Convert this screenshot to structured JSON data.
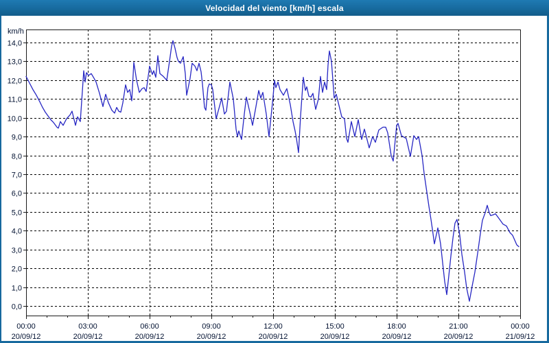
{
  "colors": {
    "chrome_blue": "#17699e",
    "plot_background": "#ffffff",
    "plot_border": "#1a1a1a",
    "gridline": "#000000",
    "line_blue": "#2626c3",
    "tick_text": "#001030",
    "title_text": "#ffffff"
  },
  "chart_data": {
    "type": "line",
    "title": "Velocidad del viento [km/h] escala",
    "y_unit_label": "km/h",
    "series_name": "Velocidad del viento",
    "grid": "dashed",
    "legend": "none",
    "x_axis": {
      "range_hours": [
        0,
        24
      ],
      "minor_tick_hours": 1,
      "major_tick_hours": 3,
      "ticks": [
        {
          "hour": 0,
          "time": "00:00",
          "date": "20/09/12"
        },
        {
          "hour": 3,
          "time": "03:00",
          "date": "20/09/12"
        },
        {
          "hour": 6,
          "time": "06:00",
          "date": "20/09/12"
        },
        {
          "hour": 9,
          "time": "09:00",
          "date": "20/09/12"
        },
        {
          "hour": 12,
          "time": "12:00",
          "date": "20/09/12"
        },
        {
          "hour": 15,
          "time": "15:00",
          "date": "20/09/12"
        },
        {
          "hour": 18,
          "time": "18:00",
          "date": "20/09/12"
        },
        {
          "hour": 21,
          "time": "21:00",
          "date": "20/09/12"
        },
        {
          "hour": 24,
          "time": "00:00",
          "date": "21/09/12"
        }
      ]
    },
    "y_axis": {
      "range_display": [
        -0.5,
        14.7
      ],
      "ticks": [
        {
          "v": 0,
          "label": "0,0"
        },
        {
          "v": 1,
          "label": "1,0"
        },
        {
          "v": 2,
          "label": "2,0"
        },
        {
          "v": 3,
          "label": "3,0"
        },
        {
          "v": 4,
          "label": "4,0"
        },
        {
          "v": 5,
          "label": "5,0"
        },
        {
          "v": 6,
          "label": "6,0"
        },
        {
          "v": 7,
          "label": "7,0"
        },
        {
          "v": 8,
          "label": "8,0"
        },
        {
          "v": 9,
          "label": "9,0"
        },
        {
          "v": 10,
          "label": "10,0"
        },
        {
          "v": 11,
          "label": "11,0"
        },
        {
          "v": 12,
          "label": "12,0"
        },
        {
          "v": 13,
          "label": "13,0"
        },
        {
          "v": 14,
          "label": "14,0"
        }
      ]
    },
    "points_min_kmh": [
      [
        0,
        12.2
      ],
      [
        10,
        11.85
      ],
      [
        20,
        11.5
      ],
      [
        30,
        11.2
      ],
      [
        40,
        10.85
      ],
      [
        48,
        10.55
      ],
      [
        56,
        10.3
      ],
      [
        64,
        10.1
      ],
      [
        72,
        9.9
      ],
      [
        80,
        9.75
      ],
      [
        90,
        9.5
      ],
      [
        94,
        9.45
      ],
      [
        100,
        9.8
      ],
      [
        108,
        9.6
      ],
      [
        118,
        9.95
      ],
      [
        128,
        10.15
      ],
      [
        134,
        10.35
      ],
      [
        144,
        9.6
      ],
      [
        150,
        10.05
      ],
      [
        158,
        9.8
      ],
      [
        164,
        11.4
      ],
      [
        168,
        12.5
      ],
      [
        172,
        11.9
      ],
      [
        176,
        12.4
      ],
      [
        182,
        12.25
      ],
      [
        190,
        12.35
      ],
      [
        198,
        12.1
      ],
      [
        204,
        11.9
      ],
      [
        214,
        11.3
      ],
      [
        224,
        10.6
      ],
      [
        232,
        11.25
      ],
      [
        240,
        10.8
      ],
      [
        250,
        10.4
      ],
      [
        258,
        10.25
      ],
      [
        264,
        10.55
      ],
      [
        270,
        10.35
      ],
      [
        276,
        10.3
      ],
      [
        282,
        10.8
      ],
      [
        290,
        11.75
      ],
      [
        296,
        11.35
      ],
      [
        302,
        11.5
      ],
      [
        308,
        10.9
      ],
      [
        314,
        12.95
      ],
      [
        322,
        12.0
      ],
      [
        330,
        11.35
      ],
      [
        338,
        11.55
      ],
      [
        344,
        11.6
      ],
      [
        350,
        11.4
      ],
      [
        360,
        12.75
      ],
      [
        368,
        12.3
      ],
      [
        372,
        12.5
      ],
      [
        378,
        12.15
      ],
      [
        384,
        13.3
      ],
      [
        390,
        12.35
      ],
      [
        400,
        12.2
      ],
      [
        410,
        12.0
      ],
      [
        418,
        13.0
      ],
      [
        424,
        13.8
      ],
      [
        428,
        14.1
      ],
      [
        434,
        13.7
      ],
      [
        440,
        13.2
      ],
      [
        444,
        13.0
      ],
      [
        450,
        12.9
      ],
      [
        458,
        13.25
      ],
      [
        464,
        12.35
      ],
      [
        468,
        11.2
      ],
      [
        478,
        12.1
      ],
      [
        484,
        12.9
      ],
      [
        492,
        12.75
      ],
      [
        498,
        12.5
      ],
      [
        504,
        12.9
      ],
      [
        510,
        12.45
      ],
      [
        514,
        11.8
      ],
      [
        520,
        10.55
      ],
      [
        524,
        10.4
      ],
      [
        530,
        11.6
      ],
      [
        534,
        11.8
      ],
      [
        540,
        11.75
      ],
      [
        544,
        11.5
      ],
      [
        554,
        9.95
      ],
      [
        568,
        10.9
      ],
      [
        570,
        11.05
      ],
      [
        578,
        10.2
      ],
      [
        584,
        10.35
      ],
      [
        594,
        11.9
      ],
      [
        604,
        11.0
      ],
      [
        612,
        9.4
      ],
      [
        616,
        9.0
      ],
      [
        620,
        9.3
      ],
      [
        628,
        8.85
      ],
      [
        636,
        10.2
      ],
      [
        642,
        11.1
      ],
      [
        652,
        10.3
      ],
      [
        660,
        9.6
      ],
      [
        670,
        10.6
      ],
      [
        678,
        11.45
      ],
      [
        684,
        11.05
      ],
      [
        690,
        11.35
      ],
      [
        700,
        10.2
      ],
      [
        708,
        9.0
      ],
      [
        720,
        11.15
      ],
      [
        724,
        12.0
      ],
      [
        728,
        11.6
      ],
      [
        734,
        11.9
      ],
      [
        740,
        11.5
      ],
      [
        750,
        11.2
      ],
      [
        760,
        11.55
      ],
      [
        770,
        10.7
      ],
      [
        778,
        9.8
      ],
      [
        784,
        9.3
      ],
      [
        788,
        8.9
      ],
      [
        794,
        8.15
      ],
      [
        800,
        10.1
      ],
      [
        808,
        12.15
      ],
      [
        814,
        11.45
      ],
      [
        818,
        11.65
      ],
      [
        824,
        11.15
      ],
      [
        830,
        11.1
      ],
      [
        836,
        11.3
      ],
      [
        844,
        10.45
      ],
      [
        852,
        11.0
      ],
      [
        858,
        12.2
      ],
      [
        864,
        11.35
      ],
      [
        870,
        11.9
      ],
      [
        876,
        11.5
      ],
      [
        880,
        12.8
      ],
      [
        884,
        13.55
      ],
      [
        890,
        13.0
      ],
      [
        898,
        11.05
      ],
      [
        904,
        11.25
      ],
      [
        910,
        10.8
      ],
      [
        920,
        10.05
      ],
      [
        928,
        9.95
      ],
      [
        934,
        8.9
      ],
      [
        938,
        8.7
      ],
      [
        948,
        9.8
      ],
      [
        958,
        9.0
      ],
      [
        968,
        9.9
      ],
      [
        978,
        8.85
      ],
      [
        986,
        9.4
      ],
      [
        1000,
        8.4
      ],
      [
        1010,
        9.0
      ],
      [
        1018,
        8.7
      ],
      [
        1028,
        9.35
      ],
      [
        1040,
        9.5
      ],
      [
        1048,
        9.5
      ],
      [
        1054,
        9.2
      ],
      [
        1064,
        8.0
      ],
      [
        1070,
        7.7
      ],
      [
        1080,
        9.6
      ],
      [
        1084,
        9.7
      ],
      [
        1094,
        9.05
      ],
      [
        1108,
        8.9
      ],
      [
        1120,
        7.95
      ],
      [
        1130,
        9.05
      ],
      [
        1138,
        8.85
      ],
      [
        1144,
        9.0
      ],
      [
        1154,
        8.0
      ],
      [
        1160,
        7.05
      ],
      [
        1168,
        6.05
      ],
      [
        1174,
        5.3
      ],
      [
        1180,
        4.6
      ],
      [
        1184,
        4.1
      ],
      [
        1190,
        3.3
      ],
      [
        1200,
        4.15
      ],
      [
        1208,
        3.3
      ],
      [
        1214,
        2.3
      ],
      [
        1220,
        1.3
      ],
      [
        1226,
        0.6
      ],
      [
        1232,
        1.6
      ],
      [
        1238,
        2.65
      ],
      [
        1244,
        3.6
      ],
      [
        1250,
        4.4
      ],
      [
        1256,
        4.6
      ],
      [
        1264,
        3.75
      ],
      [
        1270,
        2.75
      ],
      [
        1278,
        1.8
      ],
      [
        1284,
        0.95
      ],
      [
        1292,
        0.25
      ],
      [
        1300,
        1.05
      ],
      [
        1308,
        1.8
      ],
      [
        1312,
        2.3
      ],
      [
        1318,
        3.05
      ],
      [
        1324,
        3.85
      ],
      [
        1330,
        4.55
      ],
      [
        1338,
        4.95
      ],
      [
        1344,
        5.35
      ],
      [
        1350,
        4.95
      ],
      [
        1354,
        4.8
      ],
      [
        1362,
        4.85
      ],
      [
        1368,
        4.9
      ],
      [
        1380,
        4.6
      ],
      [
        1390,
        4.35
      ],
      [
        1400,
        4.25
      ],
      [
        1410,
        3.9
      ],
      [
        1418,
        3.75
      ],
      [
        1424,
        3.5
      ],
      [
        1430,
        3.25
      ],
      [
        1436,
        3.15
      ]
    ]
  }
}
